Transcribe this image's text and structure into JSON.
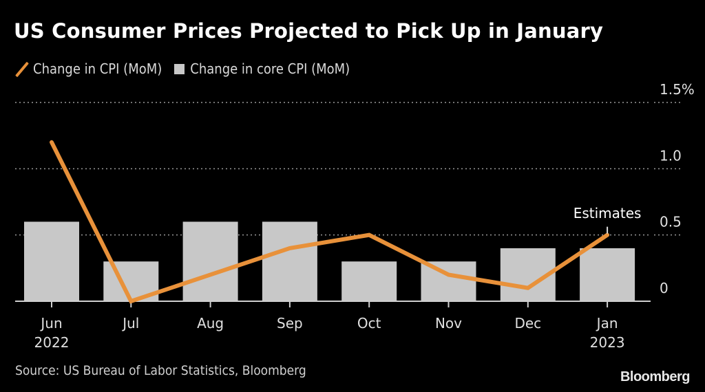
{
  "header": {
    "title": "US Consumer Prices Projected to Pick Up in January"
  },
  "legend": {
    "items": [
      {
        "label": "Change in CPI (MoM)",
        "icon": "line-swatch-icon",
        "color": "#e8913a"
      },
      {
        "label": "Change in core CPI (MoM)",
        "icon": "box-swatch-icon",
        "color": "#c8c8c8"
      }
    ]
  },
  "footer": {
    "source": "Source: US Bureau of Labor Statistics, Bloomberg",
    "brand": "Bloomberg"
  },
  "chart_data": {
    "type": "bar",
    "title": "US Consumer Prices Projected to Pick Up in January",
    "categories": [
      "Jun",
      "Jul",
      "Aug",
      "Sep",
      "Oct",
      "Nov",
      "Dec",
      "Jan"
    ],
    "category_sublabels": [
      "2022",
      "",
      "",
      "",
      "",
      "",
      "",
      "2023"
    ],
    "series": [
      {
        "name": "Change in core CPI (MoM)",
        "type": "bar",
        "color": "#c8c8c8",
        "values": [
          0.6,
          0.3,
          0.6,
          0.6,
          0.3,
          0.3,
          0.4,
          0.4
        ]
      },
      {
        "name": "Change in CPI (MoM)",
        "type": "line",
        "color": "#e8913a",
        "values": [
          1.2,
          0.0,
          0.2,
          0.4,
          0.5,
          0.2,
          0.1,
          0.5
        ]
      }
    ],
    "yaxis": {
      "position": "right",
      "ticks": [
        0,
        0.5,
        1.0,
        1.5
      ],
      "tick_labels": [
        "0",
        "0.5",
        "1.0",
        "1.5%"
      ],
      "ylim": [
        0,
        1.5
      ],
      "grid": "dotted"
    },
    "annotations": [
      {
        "text": "Estimates",
        "category": "Jan"
      }
    ],
    "legend_position": "top-left"
  }
}
